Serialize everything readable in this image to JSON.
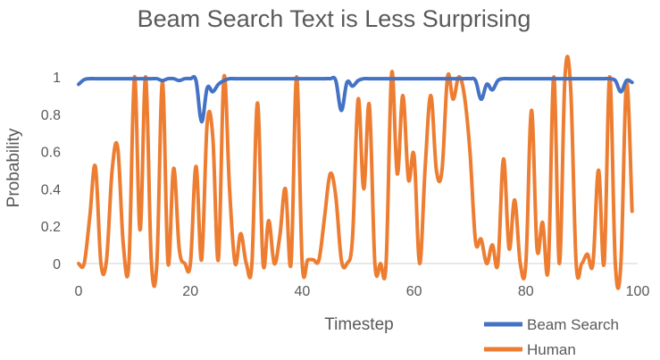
{
  "chart_data": {
    "type": "line",
    "title": "Beam Search Text is Less Surprising",
    "xlabel": "Timestep",
    "ylabel": "Probability",
    "xlim": [
      0,
      100
    ],
    "ylim": [
      0,
      1.05
    ],
    "xticks": [
      0,
      20,
      40,
      60,
      80,
      100
    ],
    "yticks": [
      0,
      0.2,
      0.4,
      0.6,
      0.8,
      1
    ],
    "ytick_labels": [
      "0",
      "0.2",
      "0.4",
      "0.6",
      "0.8",
      "1"
    ],
    "grid": false,
    "legend_position": "bottom-right",
    "series": [
      {
        "name": "Beam Search",
        "color": "#4472C4",
        "points": [
          [
            0,
            0.96
          ],
          [
            1,
            0.985
          ],
          [
            2,
            0.99
          ],
          [
            3,
            0.99
          ],
          [
            4,
            0.99
          ],
          [
            5,
            0.99
          ],
          [
            6,
            0.99
          ],
          [
            7,
            0.99
          ],
          [
            8,
            0.99
          ],
          [
            9,
            0.99
          ],
          [
            10,
            0.99
          ],
          [
            11,
            0.99
          ],
          [
            12,
            0.99
          ],
          [
            13,
            0.99
          ],
          [
            14,
            0.99
          ],
          [
            15,
            0.98
          ],
          [
            16,
            0.99
          ],
          [
            17,
            0.99
          ],
          [
            18,
            0.98
          ],
          [
            19,
            0.99
          ],
          [
            20,
            0.99
          ],
          [
            21,
            0.98
          ],
          [
            22,
            0.76
          ],
          [
            23,
            0.94
          ],
          [
            24,
            0.92
          ],
          [
            25,
            0.96
          ],
          [
            26,
            0.98
          ],
          [
            27,
            0.99
          ],
          [
            28,
            0.99
          ],
          [
            29,
            0.99
          ],
          [
            30,
            0.99
          ],
          [
            31,
            0.99
          ],
          [
            32,
            0.99
          ],
          [
            33,
            0.99
          ],
          [
            34,
            0.99
          ],
          [
            35,
            0.99
          ],
          [
            36,
            0.99
          ],
          [
            37,
            0.99
          ],
          [
            38,
            0.99
          ],
          [
            39,
            0.99
          ],
          [
            40,
            0.99
          ],
          [
            41,
            0.99
          ],
          [
            42,
            0.99
          ],
          [
            43,
            0.99
          ],
          [
            44,
            0.99
          ],
          [
            45,
            0.99
          ],
          [
            46,
            0.98
          ],
          [
            47,
            0.82
          ],
          [
            48,
            0.97
          ],
          [
            49,
            0.95
          ],
          [
            50,
            0.98
          ],
          [
            51,
            0.99
          ],
          [
            52,
            0.99
          ],
          [
            53,
            0.99
          ],
          [
            54,
            0.99
          ],
          [
            55,
            0.99
          ],
          [
            56,
            0.99
          ],
          [
            57,
            0.99
          ],
          [
            58,
            0.99
          ],
          [
            59,
            0.99
          ],
          [
            60,
            0.99
          ],
          [
            61,
            0.99
          ],
          [
            62,
            0.99
          ],
          [
            63,
            0.99
          ],
          [
            64,
            0.99
          ],
          [
            65,
            0.99
          ],
          [
            66,
            0.99
          ],
          [
            67,
            0.99
          ],
          [
            68,
            0.99
          ],
          [
            69,
            0.99
          ],
          [
            70,
            0.99
          ],
          [
            71,
            0.98
          ],
          [
            72,
            0.88
          ],
          [
            73,
            0.96
          ],
          [
            74,
            0.93
          ],
          [
            75,
            0.98
          ],
          [
            76,
            0.99
          ],
          [
            77,
            0.99
          ],
          [
            78,
            0.99
          ],
          [
            79,
            0.99
          ],
          [
            80,
            0.99
          ],
          [
            81,
            0.99
          ],
          [
            82,
            0.99
          ],
          [
            83,
            0.99
          ],
          [
            84,
            0.99
          ],
          [
            85,
            0.99
          ],
          [
            86,
            0.99
          ],
          [
            87,
            0.99
          ],
          [
            88,
            0.99
          ],
          [
            89,
            0.99
          ],
          [
            90,
            0.99
          ],
          [
            91,
            0.99
          ],
          [
            92,
            0.99
          ],
          [
            93,
            0.99
          ],
          [
            94,
            0.99
          ],
          [
            95,
            0.99
          ],
          [
            96,
            0.98
          ],
          [
            97,
            0.92
          ],
          [
            98,
            0.98
          ],
          [
            99,
            0.97
          ]
        ]
      },
      {
        "name": "Human",
        "color": "#ED7D31",
        "points": [
          [
            0,
            0.0
          ],
          [
            1,
            0.0
          ],
          [
            2,
            0.25
          ],
          [
            3,
            0.52
          ],
          [
            4,
            0.0
          ],
          [
            5,
            0.02
          ],
          [
            6,
            0.5
          ],
          [
            7,
            0.62
          ],
          [
            8,
            0.1
          ],
          [
            9,
            0.0
          ],
          [
            10,
            1.0
          ],
          [
            11,
            0.18
          ],
          [
            12,
            1.0
          ],
          [
            13,
            0.02
          ],
          [
            14,
            0.0
          ],
          [
            15,
            0.97
          ],
          [
            16,
            0.0
          ],
          [
            17,
            0.51
          ],
          [
            18,
            0.08
          ],
          [
            19,
            0.0
          ],
          [
            20,
            0.0
          ],
          [
            21,
            0.52
          ],
          [
            22,
            0.02
          ],
          [
            23,
            0.75
          ],
          [
            24,
            0.68
          ],
          [
            25,
            0.02
          ],
          [
            26,
            1.0
          ],
          [
            27,
            0.4
          ],
          [
            28,
            0.0
          ],
          [
            29,
            0.16
          ],
          [
            30,
            0.0
          ],
          [
            31,
            0.0
          ],
          [
            32,
            0.86
          ],
          [
            33,
            0.0
          ],
          [
            34,
            0.23
          ],
          [
            35,
            0.0
          ],
          [
            36,
            0.15
          ],
          [
            37,
            0.4
          ],
          [
            38,
            0.0
          ],
          [
            39,
            1.0
          ],
          [
            40,
            0.0
          ],
          [
            41,
            0.02
          ],
          [
            42,
            0.02
          ],
          [
            43,
            0.02
          ],
          [
            44,
            0.25
          ],
          [
            45,
            0.48
          ],
          [
            46,
            0.36
          ],
          [
            47,
            0.02
          ],
          [
            48,
            0.0
          ],
          [
            49,
            0.14
          ],
          [
            50,
            0.88
          ],
          [
            51,
            0.4
          ],
          [
            52,
            0.85
          ],
          [
            53,
            0.0
          ],
          [
            54,
            0.0
          ],
          [
            55,
            0.0
          ],
          [
            56,
            1.02
          ],
          [
            57,
            0.48
          ],
          [
            58,
            0.9
          ],
          [
            59,
            0.45
          ],
          [
            60,
            0.58
          ],
          [
            61,
            0.0
          ],
          [
            62,
            0.52
          ],
          [
            63,
            0.9
          ],
          [
            64,
            0.5
          ],
          [
            65,
            0.5
          ],
          [
            66,
            1.0
          ],
          [
            67,
            0.88
          ],
          [
            68,
            1.0
          ],
          [
            69,
            0.9
          ],
          [
            70,
            0.6
          ],
          [
            71,
            0.12
          ],
          [
            72,
            0.13
          ],
          [
            73,
            0.0
          ],
          [
            74,
            0.1
          ],
          [
            75,
            0.0
          ],
          [
            76,
            0.56
          ],
          [
            77,
            0.08
          ],
          [
            78,
            0.34
          ],
          [
            79,
            0.0
          ],
          [
            80,
            0.0
          ],
          [
            81,
            0.82
          ],
          [
            82,
            0.08
          ],
          [
            83,
            0.22
          ],
          [
            84,
            -0.03
          ],
          [
            85,
            1.0
          ],
          [
            86,
            0.0
          ],
          [
            87,
            1.0
          ],
          [
            88,
            0.95
          ],
          [
            89,
            0.0
          ],
          [
            90,
            0.0
          ],
          [
            91,
            0.05
          ],
          [
            92,
            0.0
          ],
          [
            93,
            0.5
          ],
          [
            94,
            0.0
          ],
          [
            95,
            1.0
          ],
          [
            96,
            0.0
          ],
          [
            97,
            0.0
          ],
          [
            98,
            0.97
          ],
          [
            99,
            0.28
          ]
        ]
      }
    ]
  }
}
